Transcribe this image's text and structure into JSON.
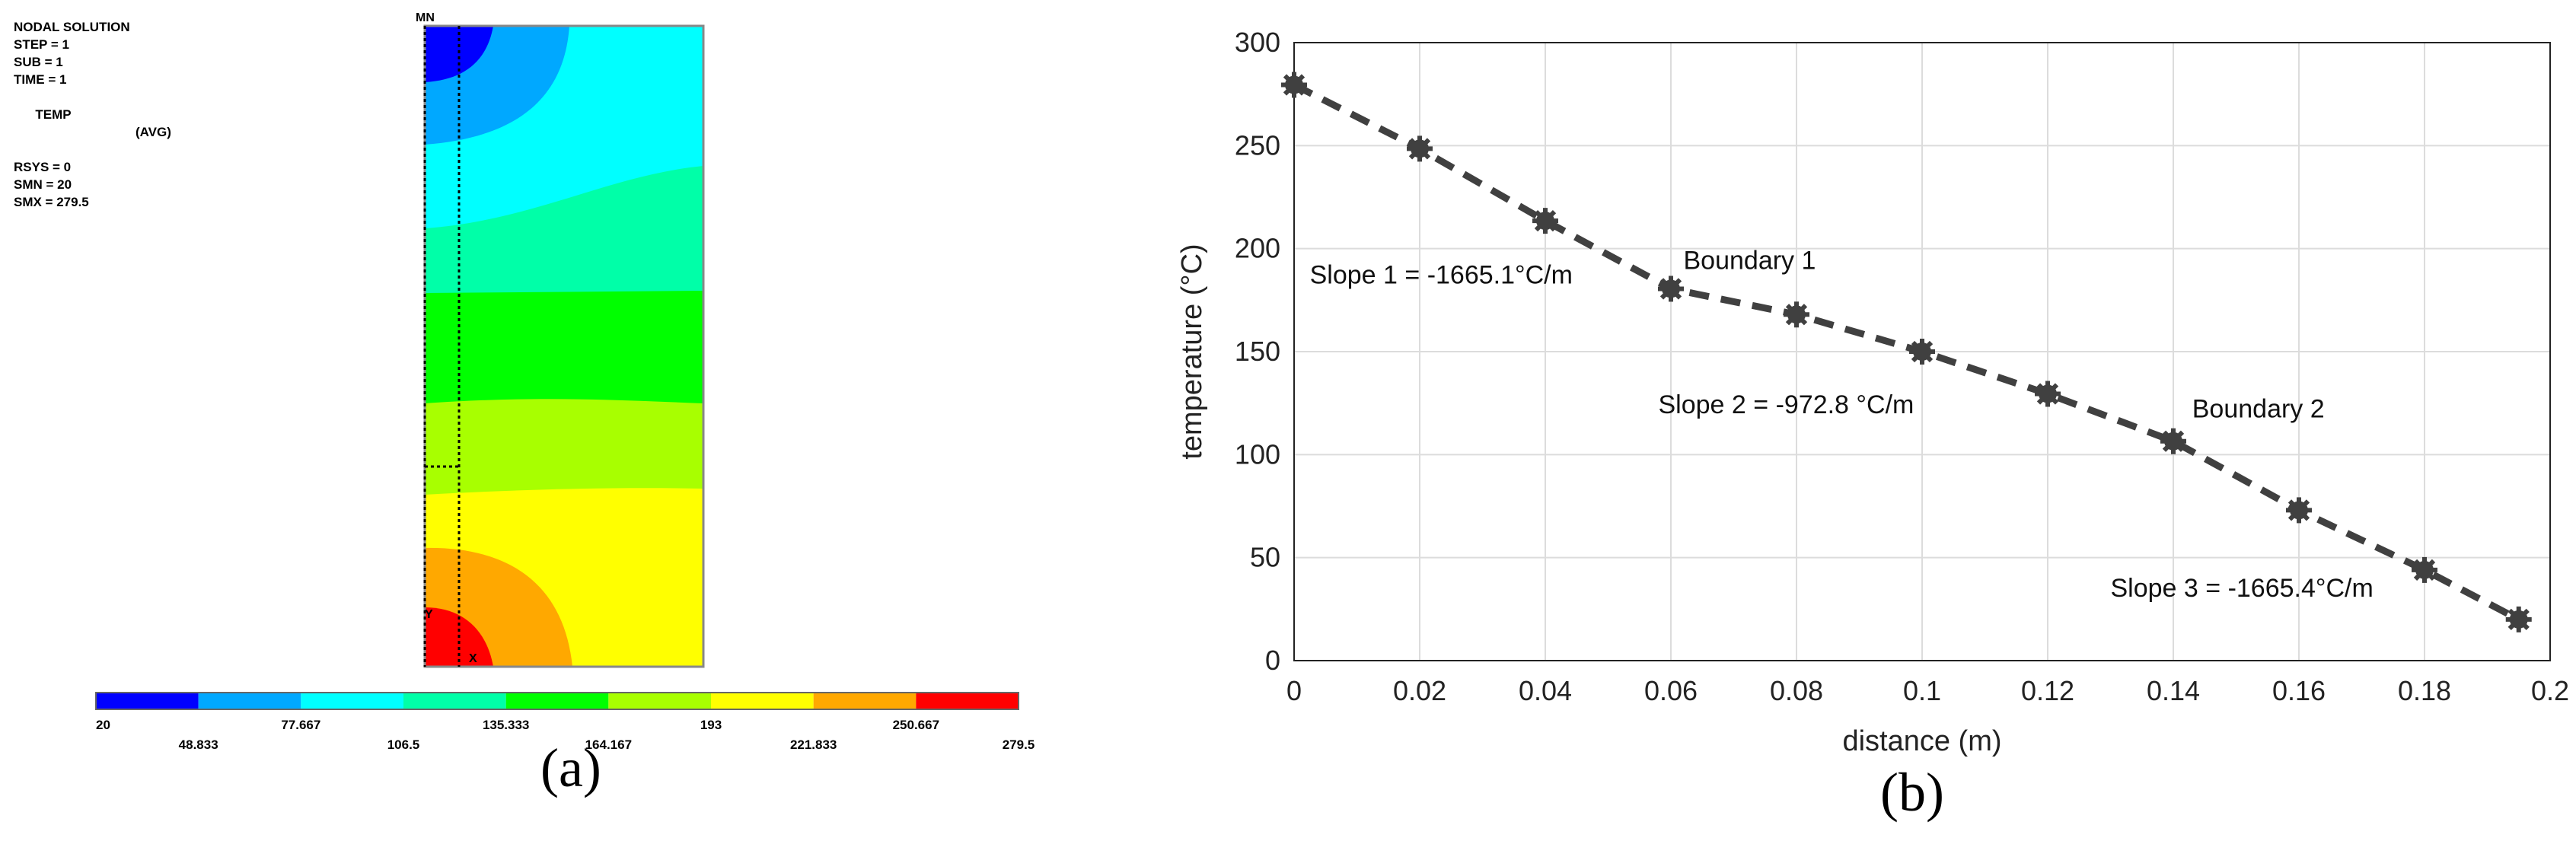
{
  "panel_a": {
    "caption": "(a)",
    "info": {
      "title": "NODAL SOLUTION",
      "step": "STEP = 1",
      "sub": "SUB = 1",
      "time": "TIME = 1",
      "temp": "TEMP",
      "avg": "(AVG)",
      "rsys": "RSYS = 0",
      "smn": "SMN = 20",
      "smx": "SMX = 279.5"
    },
    "mn_marker": "MN",
    "mx_marker": "MX",
    "colorbar": {
      "colors": [
        "#0000ff",
        "#00a8ff",
        "#00ffff",
        "#00ffa8",
        "#00ff00",
        "#a8ff00",
        "#ffff00",
        "#ffa800",
        "#ff0000"
      ],
      "labels": [
        "20",
        "48.833",
        "77.667",
        "106.5",
        "135.333",
        "164.167",
        "193",
        "221.833",
        "250.667",
        "279.5"
      ]
    }
  },
  "panel_b": {
    "caption": "(b)",
    "chart_data": {
      "type": "line",
      "title": "",
      "xlabel": "distance (m)",
      "ylabel": "temperature (°C)",
      "xlim": [
        0,
        0.2
      ],
      "ylim": [
        0,
        300
      ],
      "grid": true,
      "x_ticks": [
        0,
        0.02,
        0.04,
        0.06,
        0.08,
        0.1,
        0.12,
        0.14,
        0.16,
        0.18,
        0.2
      ],
      "x_tick_labels": [
        "0",
        "0.02",
        "0.04",
        "0.06",
        "0.08",
        "0.1",
        "0.12",
        "0.14",
        "0.16",
        "0.18",
        "0.2"
      ],
      "y_ticks": [
        0,
        50,
        100,
        150,
        200,
        250,
        300
      ],
      "y_tick_labels": [
        "0",
        "50",
        "100",
        "150",
        "200",
        "250",
        "300"
      ],
      "series": [
        {
          "name": "temperature",
          "style": "dashed line with star markers",
          "color": "#404040",
          "x": [
            0,
            0.02,
            0.04,
            0.06,
            0.08,
            0.1,
            0.12,
            0.14,
            0.16,
            0.18,
            0.195
          ],
          "y": [
            279.5,
            248.5,
            213.5,
            180.5,
            168,
            150,
            129.5,
            106.5,
            73,
            44,
            20
          ]
        }
      ],
      "annotations": [
        {
          "text": "Slope 1 = -1665.1°C/m",
          "x": 0.0025,
          "y": 183
        },
        {
          "text": "Boundary 1",
          "x": 0.062,
          "y": 190
        },
        {
          "text": "Slope 2 = -972.8 °C/m",
          "x": 0.058,
          "y": 120
        },
        {
          "text": "Boundary 2",
          "x": 0.143,
          "y": 118
        },
        {
          "text": "Slope 3 = -1665.4°C/m",
          "x": 0.13,
          "y": 31
        }
      ]
    }
  }
}
